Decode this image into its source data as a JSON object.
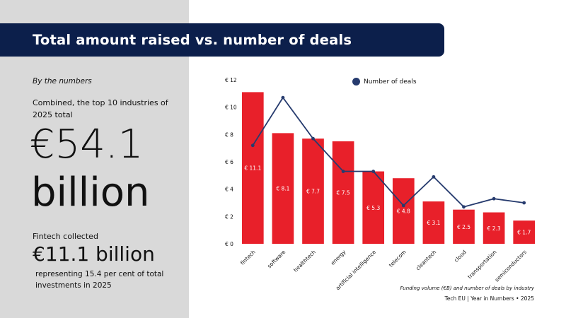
{
  "header": {
    "title": "Total amount raised vs. number of deals"
  },
  "summary": {
    "subtitle": "By the numbers",
    "combined_text": "Combined, the top 10 industries of 2025 total",
    "total_amount": "€54.1",
    "total_unit": "billion",
    "fintech_label": "Fintech collected",
    "fintech_amount": "€11.1 billion",
    "fintech_desc": "representing 15.4 per cent of total investments in 2025"
  },
  "footer": {
    "caption": "Funding volume (€B) and number of deals by industry",
    "credit": "Tech EU | Year in Numbers • 2025"
  },
  "colors": {
    "bar": "#e8202a",
    "line": "#263b6e",
    "banner": "#0c1f4b",
    "panel": "#d9d9d9"
  },
  "chart_data": {
    "type": "bar",
    "categories": [
      "fintech",
      "software",
      "healthtech",
      "energy",
      "artificial intelligence",
      "telecom",
      "cleantech",
      "cloud",
      "transportation",
      "semiconductors"
    ],
    "series": [
      {
        "name": "Funding volume (€B)",
        "type": "bar",
        "values": [
          11.1,
          8.1,
          7.7,
          7.5,
          5.3,
          4.8,
          3.1,
          2.5,
          2.3,
          1.7
        ],
        "labels": [
          "€ 11.1",
          "€ 8.1",
          "€ 7.7",
          "€ 7.5",
          "€ 5.3",
          "€ 4.8",
          "€ 3.1",
          "€ 2.5",
          "€ 2.3",
          "€ 1.7"
        ]
      },
      {
        "name": "Number of deals",
        "type": "line",
        "values": [
          7.2,
          10.7,
          7.7,
          5.3,
          5.3,
          2.8,
          4.9,
          2.7,
          3.3,
          3.0
        ]
      }
    ],
    "y_ticks": [
      "€ 0",
      "€ 2",
      "€ 4",
      "€ 6",
      "€ 8",
      "€ 10",
      "€ 12"
    ],
    "ylim": [
      0,
      12
    ],
    "legend": "Number of deals",
    "legend_position": "top-right"
  }
}
